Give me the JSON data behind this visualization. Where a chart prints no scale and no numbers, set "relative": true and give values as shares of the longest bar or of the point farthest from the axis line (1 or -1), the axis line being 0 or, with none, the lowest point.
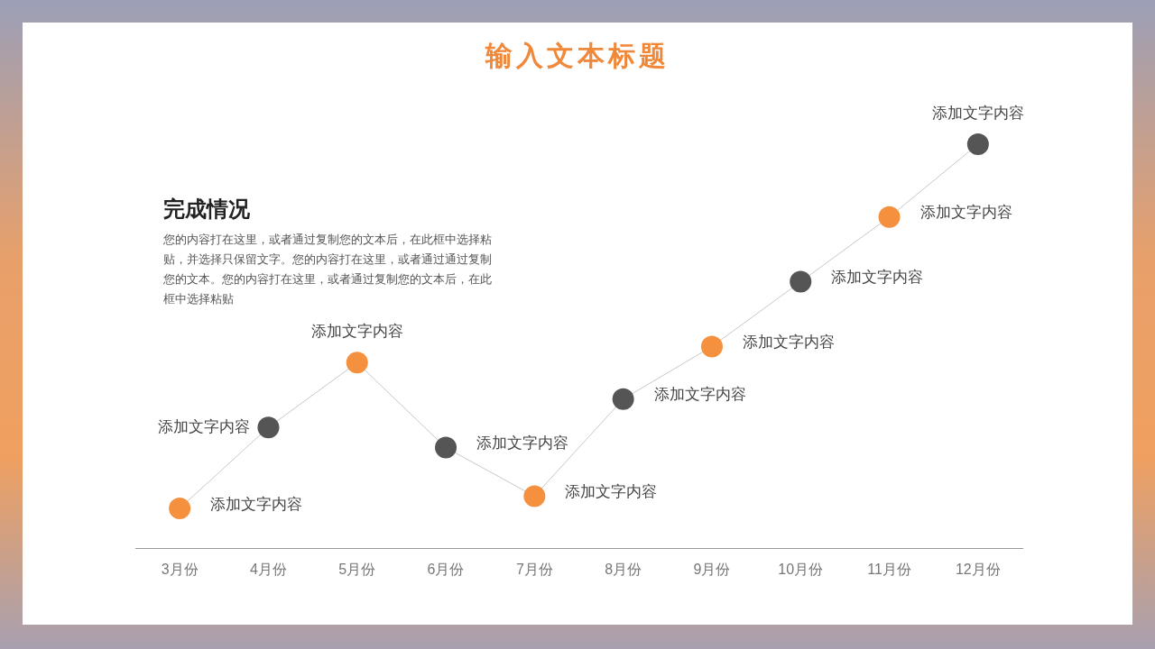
{
  "chart_data": {
    "type": "line",
    "title": "输入文本标题",
    "relative": true,
    "categories": [
      "3月份",
      "4月份",
      "5月份",
      "6月份",
      "7月份",
      "8月份",
      "9月份",
      "10月份",
      "11月份",
      "12月份"
    ],
    "series": [
      {
        "color": "#c8c8c8",
        "colors": [
          "#f5913e",
          "#555555",
          "#f5913e",
          "#555555",
          "#f5913e",
          "#555555",
          "#f5913e",
          "#555555",
          "#f5913e",
          "#555555"
        ],
        "values": [
          0.1,
          0.3,
          0.46,
          0.25,
          0.13,
          0.37,
          0.5,
          0.66,
          0.82,
          1
        ]
      }
    ],
    "marker": "circle",
    "legend": false,
    "grid": false,
    "tick_labels": "x",
    "annotations": [
      "完成情况",
      "您的内容打在这里，或者通过复制您的文本后，在此框中选择粘贴，并选择只保留文字。您的内容打在这里，或者通过通过复制您的文本。您的内容打在这里，或者通过复制您的文本后，在此框中选择粘贴",
      {
        "text": "添加文字内容",
        "x": "3月份",
        "y": 0.1
      },
      {
        "text": "添加文字内容",
        "x": "4月份",
        "y": 0.3
      },
      {
        "text": "添加文字内容",
        "x": "5月份",
        "y": 0.46
      },
      {
        "text": "添加文字内容",
        "x": "6月份",
        "y": 0.25
      },
      {
        "text": "添加文字内容",
        "x": "7月份",
        "y": 0.13
      },
      {
        "text": "添加文字内容",
        "x": "8月份",
        "y": 0.37
      },
      {
        "text": "添加文字内容",
        "x": "9月份",
        "y": 0.5
      },
      {
        "text": "添加文字内容",
        "x": "10月份",
        "y": 0.66
      },
      {
        "text": "添加文字内容",
        "x": "11月份",
        "y": 0.82
      },
      {
        "text": "添加文字内容",
        "x": "12月份",
        "y": 1
      }
    ]
  }
}
